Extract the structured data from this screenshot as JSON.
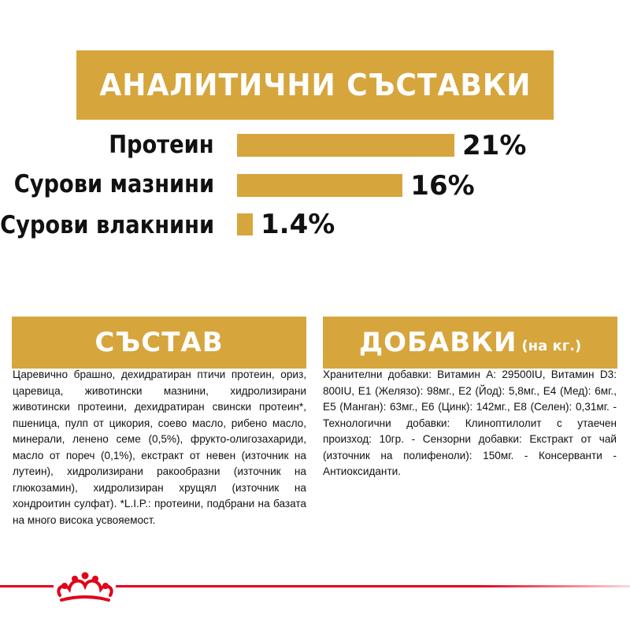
{
  "banner": {
    "title": "АНАЛИТИЧНИ СЪСТАВКИ"
  },
  "nutrients": [
    {
      "label": "Протеин",
      "value": "21%",
      "percent": 21
    },
    {
      "label": "Сурови мазнини",
      "value": "16%",
      "percent": 16
    },
    {
      "label": "Сурови влакнини",
      "value": "1.4%",
      "percent": 1.4
    }
  ],
  "composition": {
    "title": "СЪСТАВ",
    "text": "Царевично брашно, дехидратиран птичи протеин, ориз, царевица, животински мазнини, хидролизирани животински протеини, дехидратиран свински протеин*, пшеница, пулп от цикория, соево масло, рибено масло, минерали, ленено семе (0,5%), фрукто-олигозахариди, масло от пореч (0,1%), екстракт от невен (източник на лутеин), хидролизирани ракообразни (източник на глюкозамин), хидролизиран хрущял (източник на хондроитин сулфат). *L.I.P.: протеини, подбрани на базата на много висока усвояемост."
  },
  "additives": {
    "title": "ДОБАВКИ",
    "subtitle": "(на кг.)",
    "text": "Хранителни добавки: Витамин А: 29500IU, Витамин D3: 800IU, Е1 (Желязо): 98мг., Е2 (Йод): 5,8мг., Е4 (Мед): 6мг., Е5 (Манган): 63мг., Е6 (Цинк): 142мг., Е8 (Селен): 0,31мг. - Технологични добавки: Клиноптилолит с утаечен произход: 10гр. - Сензорни добавки: Екстракт от чай (източник на полифеноли): 150мг. - Консерванти - Антиоксиданти."
  },
  "colors": {
    "accent": "#d6a53c",
    "brand_red": "#e2001a"
  },
  "footer": {
    "logo_icon": "royal-canin-crown-icon"
  }
}
